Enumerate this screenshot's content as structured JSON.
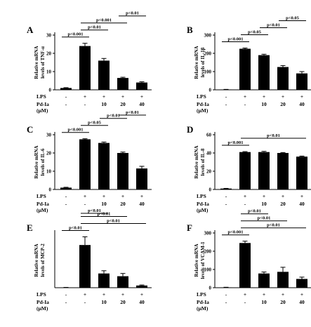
{
  "figure": {
    "condition_labels": {
      "lps": "LPS",
      "pd": "Pd-Ia",
      "unit": "(μM)"
    },
    "lps_row": [
      "-",
      "+",
      "+",
      "+",
      "+"
    ],
    "pd_row": [
      "-",
      "-",
      "10",
      "20",
      "40"
    ]
  },
  "chart_data": [
    {
      "panel": "A",
      "type": "bar",
      "ylabel": [
        "Relative mRNA",
        "levels of TNF-α"
      ],
      "ylim": [
        0,
        30
      ],
      "yticks": [
        0,
        10,
        20,
        30
      ],
      "values": [
        1,
        24,
        16,
        6.5,
        4
      ],
      "errors": [
        0.2,
        1.5,
        1.2,
        0.4,
        0.4
      ],
      "comparisons": [
        {
          "from": 0,
          "to": 1,
          "text": "p<0.001"
        },
        {
          "from": 1,
          "to": 2,
          "text": "p<0.01"
        },
        {
          "from": 1,
          "to": 3,
          "text": "p<0.001"
        },
        {
          "from": 3,
          "to": 4,
          "text": "p<0.01"
        }
      ]
    },
    {
      "panel": "B",
      "type": "bar",
      "ylabel": [
        "Relative mRNA",
        "levels of IL-1β"
      ],
      "ylim": [
        0,
        300
      ],
      "yticks": [
        0,
        100,
        200,
        300
      ],
      "values": [
        2,
        225,
        190,
        125,
        90
      ],
      "errors": [
        0.5,
        4,
        5,
        8,
        10
      ],
      "comparisons": [
        {
          "from": 0,
          "to": 1,
          "text": "p<0.001"
        },
        {
          "from": 1,
          "to": 2,
          "text": "p<0.05"
        },
        {
          "from": 2,
          "to": 3,
          "text": "p<0.01"
        },
        {
          "from": 3,
          "to": 4,
          "text": "p<0.05"
        }
      ]
    },
    {
      "panel": "C",
      "type": "bar",
      "ylabel": [
        "Relative mRNA",
        "levels of IL-6"
      ],
      "ylim": [
        0,
        30
      ],
      "yticks": [
        0,
        10,
        20,
        30
      ],
      "values": [
        1,
        27.5,
        25.5,
        20,
        11.5
      ],
      "errors": [
        0.2,
        0.3,
        0.5,
        0.5,
        1.2
      ],
      "comparisons": [
        {
          "from": 0,
          "to": 1,
          "text": "p<0.001"
        },
        {
          "from": 1,
          "to": 2,
          "text": "p<0.05"
        },
        {
          "from": 2,
          "to": 3,
          "text": "p<0.01"
        },
        {
          "from": 3,
          "to": 4,
          "text": "p<0.01"
        }
      ]
    },
    {
      "panel": "D",
      "type": "bar",
      "ylabel": [
        "Relative mRNA",
        "levels of IL-8"
      ],
      "ylim": [
        0,
        60
      ],
      "yticks": [
        0,
        20,
        40,
        60
      ],
      "values": [
        1,
        41,
        41,
        40,
        36
      ],
      "errors": [
        0.2,
        0.5,
        0.8,
        0.5,
        0.6
      ],
      "comparisons": [
        {
          "from": 0,
          "to": 1,
          "text": "p<0.001"
        },
        {
          "from": 1,
          "to": 4,
          "text": "p<0.01"
        }
      ]
    },
    {
      "panel": "E",
      "type": "bar",
      "ylabel": [
        "Relative mRNA",
        "levels of MCP-2"
      ],
      "ylim": [
        0,
        500
      ],
      "yticks": [],
      "values": [
        2,
        390,
        130,
        105,
        20
      ],
      "errors": [
        1,
        75,
        25,
        25,
        5
      ],
      "comparisons": [
        {
          "from": 0,
          "to": 1,
          "text": "p<0.01"
        },
        {
          "from": 1,
          "to": 4,
          "text": "p<0.01"
        },
        {
          "from": 1,
          "to": 3,
          "text": "p<0.01"
        },
        {
          "from": 1,
          "to": 2,
          "text": "p<0.01"
        }
      ]
    },
    {
      "panel": "F",
      "type": "bar",
      "ylabel": [
        "Relative mRNA",
        "levels of VCAM-1"
      ],
      "ylim": [
        0,
        300
      ],
      "yticks": [
        0,
        100,
        200,
        300
      ],
      "values": [
        2,
        245,
        78,
        87,
        48
      ],
      "errors": [
        0.5,
        10,
        8,
        25,
        10
      ],
      "comparisons": [
        {
          "from": 0,
          "to": 1,
          "text": "p<0.001"
        },
        {
          "from": 1,
          "to": 4,
          "text": "p<0.01"
        },
        {
          "from": 1,
          "to": 3,
          "text": "p<0.01"
        },
        {
          "from": 1,
          "to": 2,
          "text": "p<0.01"
        }
      ]
    }
  ]
}
